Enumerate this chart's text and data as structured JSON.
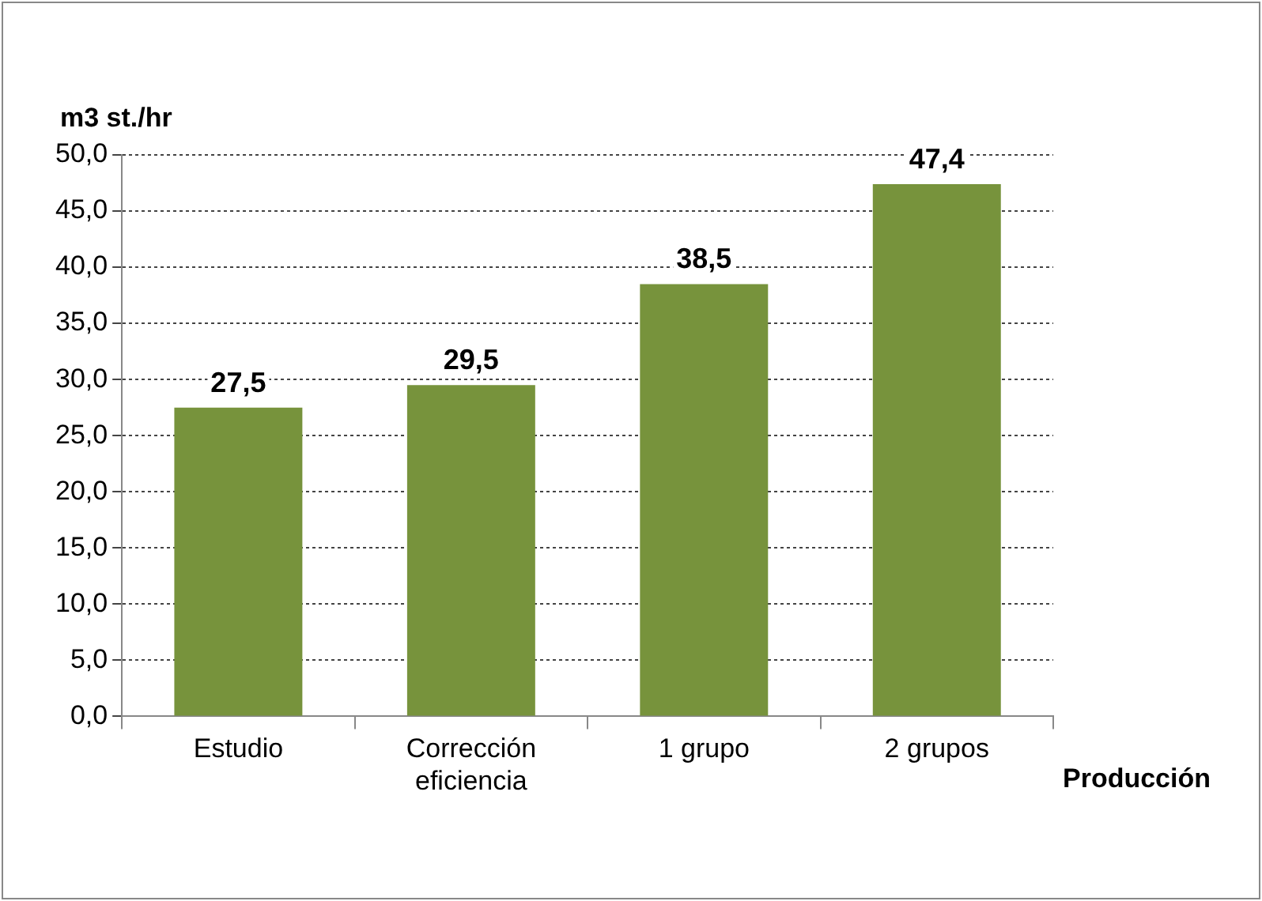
{
  "chart_data": {
    "type": "bar",
    "ylabel": "m3 st./hr",
    "xlabel": "Producción",
    "categories": [
      "Estudio",
      "Corrección eficiencia",
      "1 grupo",
      "2 grupos"
    ],
    "values": [
      27.5,
      29.5,
      38.5,
      47.4
    ],
    "value_labels": [
      "27,5",
      "29,5",
      "38,5",
      "47,4"
    ],
    "color": "#77933c",
    "ylim": [
      0,
      50
    ],
    "yticks": [
      {
        "value": 0,
        "label": "0,0"
      },
      {
        "value": 5,
        "label": "5,0"
      },
      {
        "value": 10,
        "label": "10,0"
      },
      {
        "value": 15,
        "label": "15,0"
      },
      {
        "value": 20,
        "label": "20,0"
      },
      {
        "value": 25,
        "label": "25,0"
      },
      {
        "value": 30,
        "label": "30,0"
      },
      {
        "value": 35,
        "label": "35,0"
      },
      {
        "value": 40,
        "label": "40,0"
      },
      {
        "value": 45,
        "label": "45,0"
      },
      {
        "value": 50,
        "label": "50,0"
      }
    ],
    "grid": "y",
    "legend": false
  }
}
